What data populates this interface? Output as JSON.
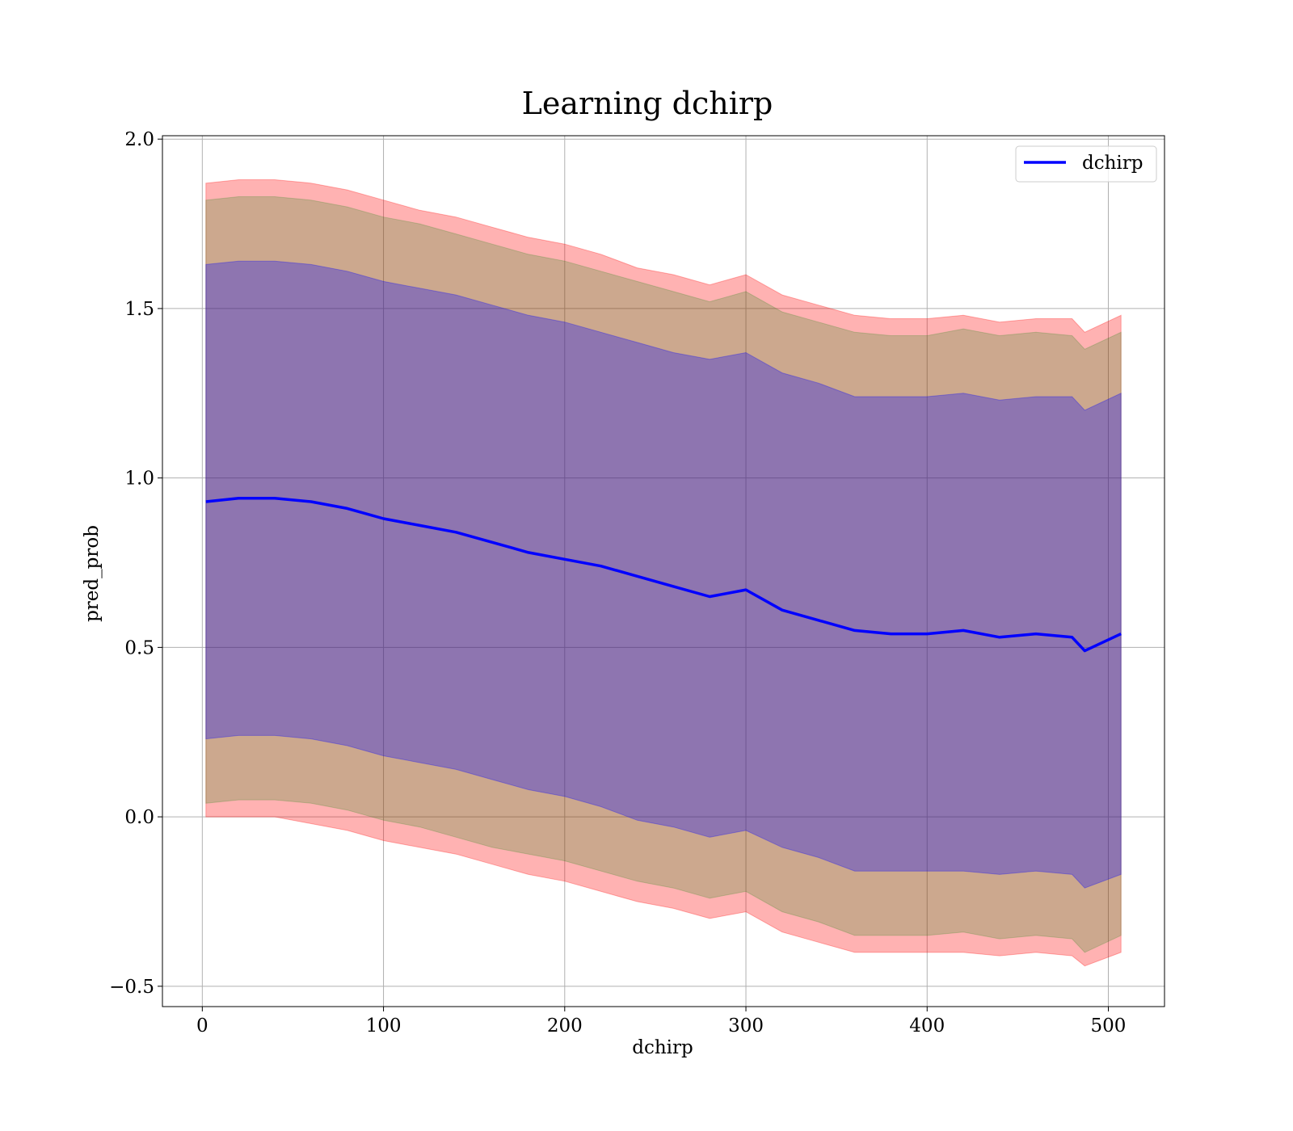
{
  "chart_data": {
    "type": "line",
    "title": "Learning dchirp",
    "xlabel": "dchirp",
    "ylabel": "pred_prob",
    "xlim": [
      -22,
      531
    ],
    "ylim": [
      -0.56,
      2.01
    ],
    "xticks": [
      0,
      100,
      200,
      300,
      400,
      500
    ],
    "yticks": [
      -0.5,
      0.0,
      0.5,
      1.0,
      1.5,
      2.0
    ],
    "xtick_labels": [
      "0",
      "100",
      "200",
      "300",
      "400",
      "500"
    ],
    "ytick_labels": [
      "−0.5",
      "0.0",
      "0.5",
      "1.0",
      "1.5",
      "2.0"
    ],
    "grid": true,
    "legend": {
      "location": "upper right",
      "entries": [
        "dchirp"
      ]
    },
    "x": [
      2,
      20,
      40,
      60,
      80,
      100,
      120,
      140,
      160,
      180,
      200,
      220,
      240,
      260,
      280,
      300,
      320,
      340,
      360,
      380,
      400,
      420,
      440,
      460,
      480,
      487,
      507
    ],
    "series": [
      {
        "name": "dchirp",
        "color": "#0000ff",
        "values": [
          0.93,
          0.94,
          0.94,
          0.93,
          0.91,
          0.88,
          0.86,
          0.84,
          0.81,
          0.78,
          0.76,
          0.74,
          0.71,
          0.68,
          0.65,
          0.67,
          0.61,
          0.58,
          0.55,
          0.54,
          0.54,
          0.55,
          0.53,
          0.54,
          0.53,
          0.49,
          0.54
        ]
      }
    ],
    "bands": [
      {
        "color": "#ff0000",
        "opacity": 0.3,
        "upper": [
          1.87,
          1.88,
          1.88,
          1.87,
          1.85,
          1.82,
          1.79,
          1.77,
          1.74,
          1.71,
          1.69,
          1.66,
          1.62,
          1.6,
          1.57,
          1.6,
          1.54,
          1.51,
          1.48,
          1.47,
          1.47,
          1.48,
          1.46,
          1.47,
          1.47,
          1.43,
          1.48
        ],
        "lower": [
          0.0,
          0.0,
          0.0,
          -0.02,
          -0.04,
          -0.07,
          -0.09,
          -0.11,
          -0.14,
          -0.17,
          -0.19,
          -0.22,
          -0.25,
          -0.27,
          -0.3,
          -0.28,
          -0.34,
          -0.37,
          -0.4,
          -0.4,
          -0.4,
          -0.4,
          -0.41,
          -0.4,
          -0.41,
          -0.44,
          -0.4
        ]
      },
      {
        "color": "#008000",
        "opacity": 0.2,
        "upper": [
          1.82,
          1.83,
          1.83,
          1.82,
          1.8,
          1.77,
          1.75,
          1.72,
          1.69,
          1.66,
          1.64,
          1.61,
          1.58,
          1.55,
          1.52,
          1.55,
          1.49,
          1.46,
          1.43,
          1.42,
          1.42,
          1.44,
          1.42,
          1.43,
          1.42,
          1.38,
          1.43
        ],
        "lower": [
          0.04,
          0.05,
          0.05,
          0.04,
          0.02,
          -0.01,
          -0.03,
          -0.06,
          -0.09,
          -0.11,
          -0.13,
          -0.16,
          -0.19,
          -0.21,
          -0.24,
          -0.22,
          -0.28,
          -0.31,
          -0.35,
          -0.35,
          -0.35,
          -0.34,
          -0.36,
          -0.35,
          -0.36,
          -0.4,
          -0.35
        ]
      },
      {
        "color": "#0000ff",
        "opacity": 0.3,
        "upper": [
          1.63,
          1.64,
          1.64,
          1.63,
          1.61,
          1.58,
          1.56,
          1.54,
          1.51,
          1.48,
          1.46,
          1.43,
          1.4,
          1.37,
          1.35,
          1.37,
          1.31,
          1.28,
          1.24,
          1.24,
          1.24,
          1.25,
          1.23,
          1.24,
          1.24,
          1.2,
          1.25
        ],
        "lower": [
          0.23,
          0.24,
          0.24,
          0.23,
          0.21,
          0.18,
          0.16,
          0.14,
          0.11,
          0.08,
          0.06,
          0.03,
          -0.01,
          -0.03,
          -0.06,
          -0.04,
          -0.09,
          -0.12,
          -0.16,
          -0.16,
          -0.16,
          -0.16,
          -0.17,
          -0.16,
          -0.17,
          -0.21,
          -0.17
        ]
      }
    ]
  }
}
